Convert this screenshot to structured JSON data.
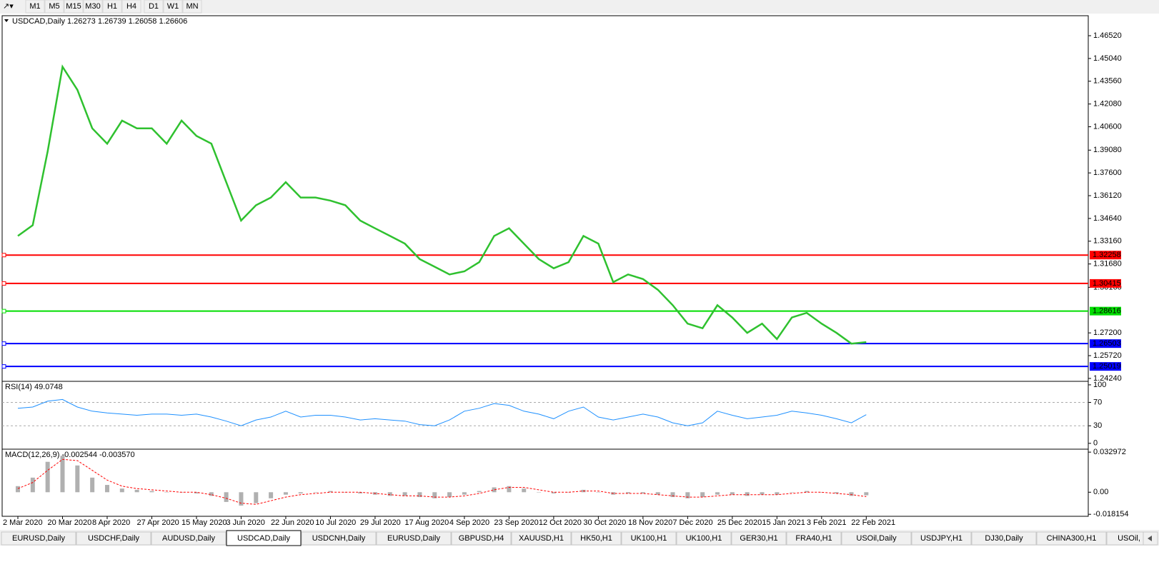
{
  "toolbar": {
    "timeframes": [
      "M1",
      "M5",
      "M15",
      "M30",
      "H1",
      "H4",
      "D1",
      "W1",
      "MN"
    ]
  },
  "chart_data": [
    {
      "type": "line",
      "title": "USDCAD,Daily  1.26273 1.26739 1.26058 1.26606",
      "categories": [
        "2 Mar 2020",
        null,
        null,
        "20 Mar 2020",
        null,
        null,
        "8 Apr 2020",
        null,
        null,
        "27 Apr 2020",
        null,
        null,
        "15 May 2020",
        null,
        null,
        "3 Jun 2020",
        null,
        null,
        "22 Jun 2020",
        null,
        null,
        "10 Jul 2020",
        null,
        null,
        "29 Jul 2020",
        null,
        null,
        "17 Aug 2020",
        null,
        null,
        "4 Sep 2020",
        null,
        null,
        "23 Sep 2020",
        null,
        null,
        "12 Oct 2020",
        null,
        null,
        "30 Oct 2020",
        null,
        null,
        "18 Nov 2020",
        null,
        null,
        "7 Dec 2020",
        null,
        null,
        "25 Dec 2020",
        null,
        null,
        "15 Jan 2021",
        null,
        null,
        "3 Feb 2021",
        null,
        null,
        "22 Feb 2021"
      ],
      "series": [
        {
          "color": "#2fc12f",
          "values": [
            1.335,
            1.342,
            1.39,
            1.445,
            1.43,
            1.405,
            1.395,
            1.41,
            1.405,
            1.405,
            1.395,
            1.41,
            1.4,
            1.395,
            1.37,
            1.345,
            1.355,
            1.36,
            1.37,
            1.36,
            1.36,
            1.358,
            1.355,
            1.345,
            1.34,
            1.335,
            1.33,
            1.32,
            1.315,
            1.31,
            1.312,
            1.318,
            1.335,
            1.34,
            1.33,
            1.32,
            1.314,
            1.318,
            1.335,
            1.33,
            1.305,
            1.31,
            1.307,
            1.3,
            1.29,
            1.278,
            1.275,
            1.29,
            1.282,
            1.272,
            1.278,
            1.268,
            1.282,
            1.285,
            1.278,
            1.272,
            1.265,
            1.266
          ]
        }
      ],
      "ylim": [
        1.2405,
        1.4782
      ],
      "yticks": [
        {
          "value": 1.4652,
          "label": "1.46520"
        },
        {
          "value": 1.4504,
          "label": "1.45040"
        },
        {
          "value": 1.4356,
          "label": "1.43560"
        },
        {
          "value": 1.4208,
          "label": "1.42080"
        },
        {
          "value": 1.406,
          "label": "1.40600"
        },
        {
          "value": 1.3908,
          "label": "1.39080"
        },
        {
          "value": 1.376,
          "label": "1.37600"
        },
        {
          "value": 1.3612,
          "label": "1.36120"
        },
        {
          "value": 1.3464,
          "label": "1.34640"
        },
        {
          "value": 1.3316,
          "label": "1.33160"
        },
        {
          "value": 1.3168,
          "label": "1.31680"
        },
        {
          "value": 1.3016,
          "label": "1.30160"
        },
        {
          "value": 1.272,
          "label": "1.27200"
        },
        {
          "value": 1.2572,
          "label": "1.25720"
        },
        {
          "value": 1.2424,
          "label": "1.24240"
        }
      ],
      "levels": [
        {
          "value": 1.32258,
          "color": "#ff0000"
        },
        {
          "value": 1.30415,
          "color": "#ff0000"
        },
        {
          "value": 1.28616,
          "color": "#00dd00"
        },
        {
          "value": 1.26503,
          "color": "#0000ff"
        },
        {
          "value": 1.25019,
          "color": "#0000ff"
        }
      ]
    },
    {
      "type": "line",
      "title": "RSI(14) 49.0748",
      "series": [
        {
          "color": "#1e90ff",
          "values": [
            60,
            62,
            72,
            75,
            62,
            55,
            52,
            50,
            48,
            50,
            50,
            48,
            50,
            45,
            38,
            30,
            40,
            45,
            55,
            45,
            48,
            48,
            45,
            40,
            42,
            40,
            38,
            32,
            30,
            40,
            55,
            60,
            68,
            65,
            55,
            50,
            42,
            55,
            62,
            45,
            40,
            45,
            50,
            45,
            35,
            30,
            35,
            55,
            48,
            42,
            45,
            48,
            55,
            52,
            48,
            42,
            35,
            49
          ]
        }
      ],
      "ylim": [
        -10,
        106
      ],
      "yticks": [
        100,
        70,
        30,
        0
      ],
      "dashed_levels": [
        70,
        30
      ]
    },
    {
      "type": "line",
      "title": "MACD(12,26,9) -0.002544 -0.003570",
      "series": [
        {
          "style": "histogram",
          "color": "#b0b0b0",
          "values": [
            0.005,
            0.012,
            0.025,
            0.03,
            0.022,
            0.012,
            0.006,
            0.003,
            0.002,
            0.001,
            0,
            0,
            -0.001,
            -0.003,
            -0.008,
            -0.011,
            -0.009,
            -0.005,
            -0.002,
            -0.001,
            0,
            0.001,
            0,
            -0.001,
            -0.002,
            -0.003,
            -0.003,
            -0.004,
            -0.005,
            -0.004,
            -0.002,
            0.001,
            0.004,
            0.005,
            0.003,
            0,
            -0.001,
            0,
            0.002,
            0,
            -0.002,
            -0.001,
            -0.001,
            -0.002,
            -0.004,
            -0.005,
            -0.004,
            -0.002,
            -0.002,
            -0.003,
            -0.002,
            -0.002,
            0,
            0.001,
            0,
            -0.001,
            -0.003,
            -0.0025
          ]
        },
        {
          "style": "dashed",
          "color": "#ff0000",
          "values": [
            0.003,
            0.008,
            0.018,
            0.027,
            0.026,
            0.018,
            0.01,
            0.005,
            0.003,
            0.002,
            0.001,
            0,
            0,
            -0.002,
            -0.005,
            -0.009,
            -0.01,
            -0.007,
            -0.004,
            -0.002,
            -0.001,
            0,
            0,
            0,
            -0.001,
            -0.002,
            -0.003,
            -0.003,
            -0.004,
            -0.004,
            -0.003,
            -0.001,
            0.002,
            0.004,
            0.004,
            0.002,
            0,
            0,
            0.001,
            0.001,
            -0.001,
            -0.001,
            -0.001,
            -0.002,
            -0.003,
            -0.004,
            -0.004,
            -0.003,
            -0.002,
            -0.002,
            -0.002,
            -0.002,
            -0.001,
            0,
            0,
            -0.001,
            -0.002,
            -0.0036
          ]
        }
      ],
      "ylim": [
        -0.0198,
        0.0354
      ],
      "yticks": [
        0.032972,
        {
          "value": 0,
          "label": "0.00"
        },
        -0.018154
      ]
    }
  ],
  "tabs": {
    "items": [
      "EURUSD,Daily",
      "USDCHF,Daily",
      "AUDUSD,Daily",
      "USDCAD,Daily",
      "USDCNH,Daily",
      "EURUSD,Daily",
      "GBPUSD,H4",
      "XAUUSD,H1",
      "HK50,H1",
      "UK100,H1",
      "UK100,H1",
      "GER30,H1",
      "FRA40,H1",
      "USOil,Daily",
      "USDJPY,H1",
      "DJ30,Daily",
      "CHINA300,H1",
      "USOil,"
    ],
    "active": 3
  }
}
